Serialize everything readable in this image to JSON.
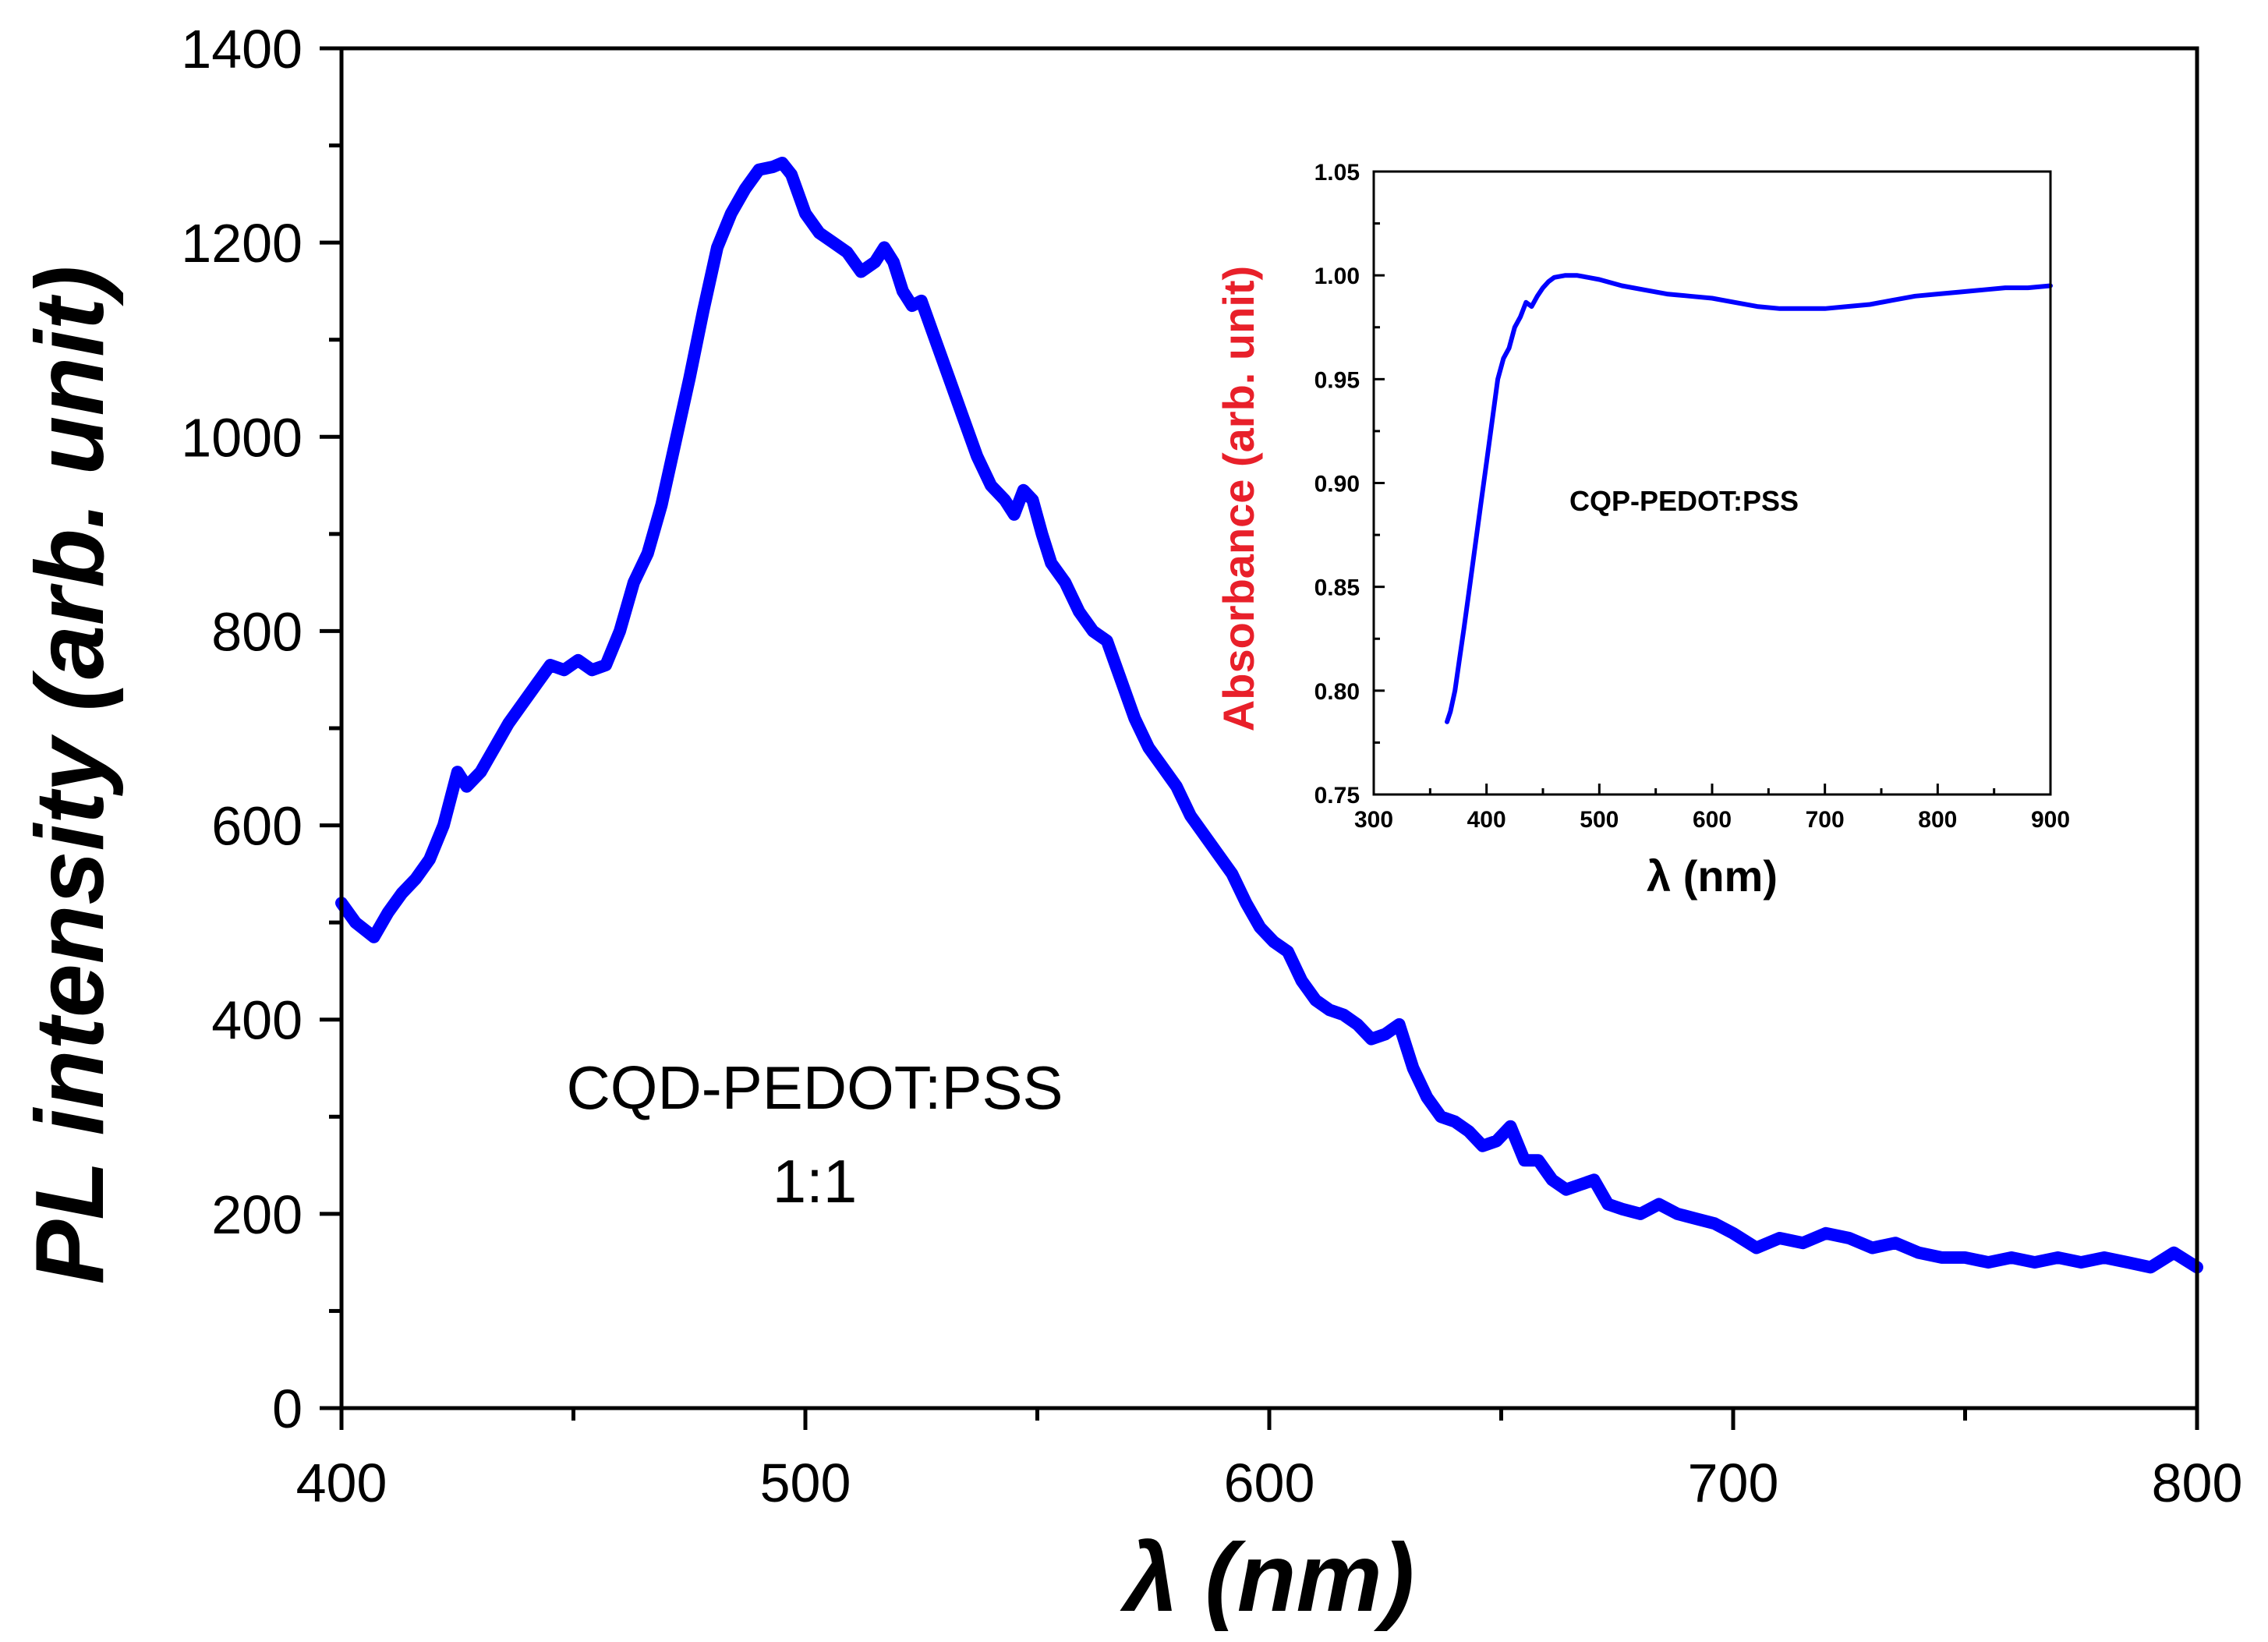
{
  "chart_data": [
    {
      "id": "main",
      "type": "line",
      "title": "",
      "xlabel": "λ (nm)",
      "ylabel": "PL intensity (arb. unit)",
      "xlim": [
        400,
        800
      ],
      "ylim": [
        0,
        1400
      ],
      "xticks": [
        400,
        500,
        600,
        700,
        800
      ],
      "yticks": [
        0,
        200,
        400,
        600,
        800,
        1000,
        1200,
        1400
      ],
      "annotation_lines": [
        "CQD-PEDOT:PSS",
        "1:1"
      ],
      "series": [
        {
          "name": "CQD-PEDOT:PSS 1:1",
          "color": "#0000ff",
          "x": [
            400,
            403,
            407,
            410,
            413,
            416,
            419,
            422,
            425,
            427,
            430,
            433,
            436,
            439,
            442,
            445,
            448,
            451,
            454,
            457,
            460,
            463,
            466,
            469,
            472,
            475,
            478,
            481,
            484,
            487,
            490,
            493,
            495,
            497,
            500,
            503,
            506,
            509,
            512,
            515,
            517,
            519,
            521,
            523,
            525,
            528,
            531,
            534,
            537,
            540,
            543,
            545,
            547,
            549,
            551,
            553,
            556,
            559,
            562,
            565,
            568,
            571,
            574,
            577,
            580,
            583,
            586,
            589,
            592,
            595,
            598,
            601,
            604,
            607,
            610,
            613,
            616,
            619,
            622,
            625,
            628,
            631,
            634,
            637,
            640,
            643,
            646,
            649,
            652,
            655,
            658,
            661,
            664,
            667,
            670,
            673,
            676,
            680,
            684,
            688,
            692,
            696,
            700,
            705,
            710,
            715,
            720,
            725,
            730,
            735,
            740,
            745,
            750,
            755,
            760,
            765,
            770,
            775,
            780,
            785,
            790,
            795,
            800
          ],
          "y": [
            520,
            500,
            485,
            510,
            530,
            545,
            565,
            600,
            655,
            640,
            655,
            680,
            705,
            725,
            745,
            765,
            760,
            770,
            760,
            765,
            800,
            850,
            880,
            930,
            995,
            1060,
            1130,
            1195,
            1230,
            1255,
            1275,
            1278,
            1282,
            1270,
            1230,
            1210,
            1200,
            1190,
            1170,
            1180,
            1195,
            1180,
            1150,
            1135,
            1140,
            1100,
            1060,
            1020,
            980,
            950,
            935,
            920,
            945,
            935,
            900,
            870,
            850,
            820,
            800,
            790,
            750,
            710,
            680,
            660,
            640,
            610,
            590,
            570,
            550,
            520,
            495,
            480,
            470,
            440,
            420,
            410,
            405,
            395,
            380,
            385,
            395,
            350,
            320,
            300,
            295,
            285,
            270,
            275,
            290,
            255,
            255,
            235,
            225,
            230,
            235,
            210,
            205,
            200,
            210,
            200,
            195,
            190,
            180,
            165,
            175,
            170,
            180,
            175,
            165,
            170,
            160,
            155,
            155,
            150,
            155,
            150,
            155,
            150,
            155,
            150,
            145,
            160,
            145
          ]
        }
      ]
    },
    {
      "id": "inset",
      "type": "line",
      "title": "",
      "xlabel": "λ (nm)",
      "ylabel": "Absorbance (arb. unit)",
      "ylabel_color": "#e8202a",
      "xlim": [
        300,
        900
      ],
      "ylim": [
        0.75,
        1.05
      ],
      "xticks": [
        300,
        400,
        500,
        600,
        700,
        800,
        900
      ],
      "yticks": [
        0.75,
        0.8,
        0.85,
        0.9,
        0.95,
        1.0,
        1.05
      ],
      "xtick_labels": [
        "300",
        "400",
        "500",
        "600",
        "700",
        "800",
        "900"
      ],
      "ytick_labels": [
        "0.75",
        "0.80",
        "0.85",
        "0.90",
        "0.95",
        "1.00",
        "1.05"
      ],
      "annotation": "CQP-PEDOT:PSS",
      "series": [
        {
          "name": "CQP-PEDOT:PSS absorbance",
          "color": "#0000ff",
          "x": [
            365,
            368,
            372,
            376,
            380,
            385,
            390,
            395,
            400,
            405,
            410,
            415,
            420,
            425,
            430,
            435,
            440,
            445,
            450,
            455,
            460,
            470,
            480,
            490,
            500,
            520,
            540,
            560,
            580,
            600,
            620,
            640,
            660,
            680,
            700,
            720,
            740,
            760,
            780,
            800,
            820,
            840,
            860,
            880,
            900
          ],
          "y": [
            0.785,
            0.79,
            0.8,
            0.815,
            0.83,
            0.85,
            0.87,
            0.89,
            0.91,
            0.93,
            0.95,
            0.96,
            0.965,
            0.975,
            0.98,
            0.987,
            0.985,
            0.99,
            0.994,
            0.997,
            0.999,
            1.0,
            1.0,
            0.999,
            0.998,
            0.995,
            0.993,
            0.991,
            0.99,
            0.989,
            0.987,
            0.985,
            0.984,
            0.984,
            0.984,
            0.985,
            0.986,
            0.988,
            0.99,
            0.991,
            0.992,
            0.993,
            0.994,
            0.994,
            0.995
          ]
        }
      ]
    }
  ]
}
